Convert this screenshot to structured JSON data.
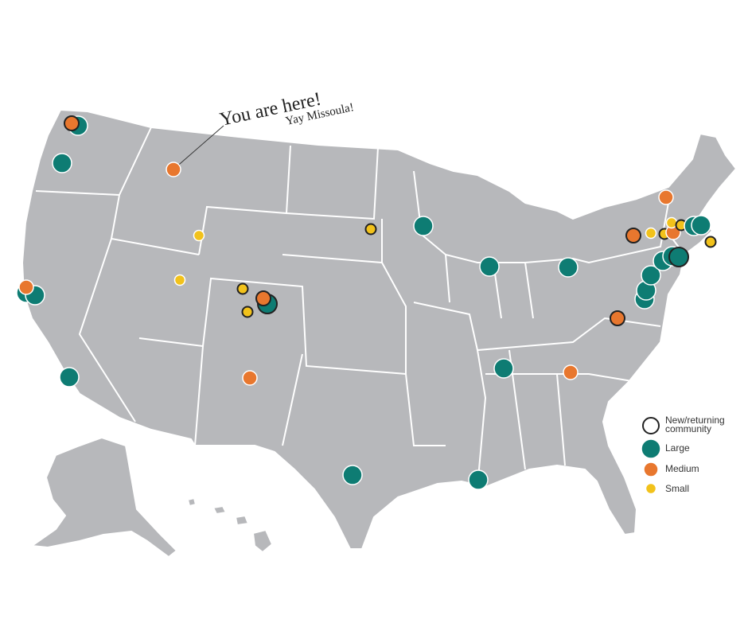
{
  "annotations": {
    "headline": "You are here!",
    "subline": "Yay Missoula!"
  },
  "legend": {
    "items": [
      {
        "label": "New/returning community"
      },
      {
        "label": "Large"
      },
      {
        "label": "Medium"
      },
      {
        "label": "Small"
      }
    ]
  }
}
